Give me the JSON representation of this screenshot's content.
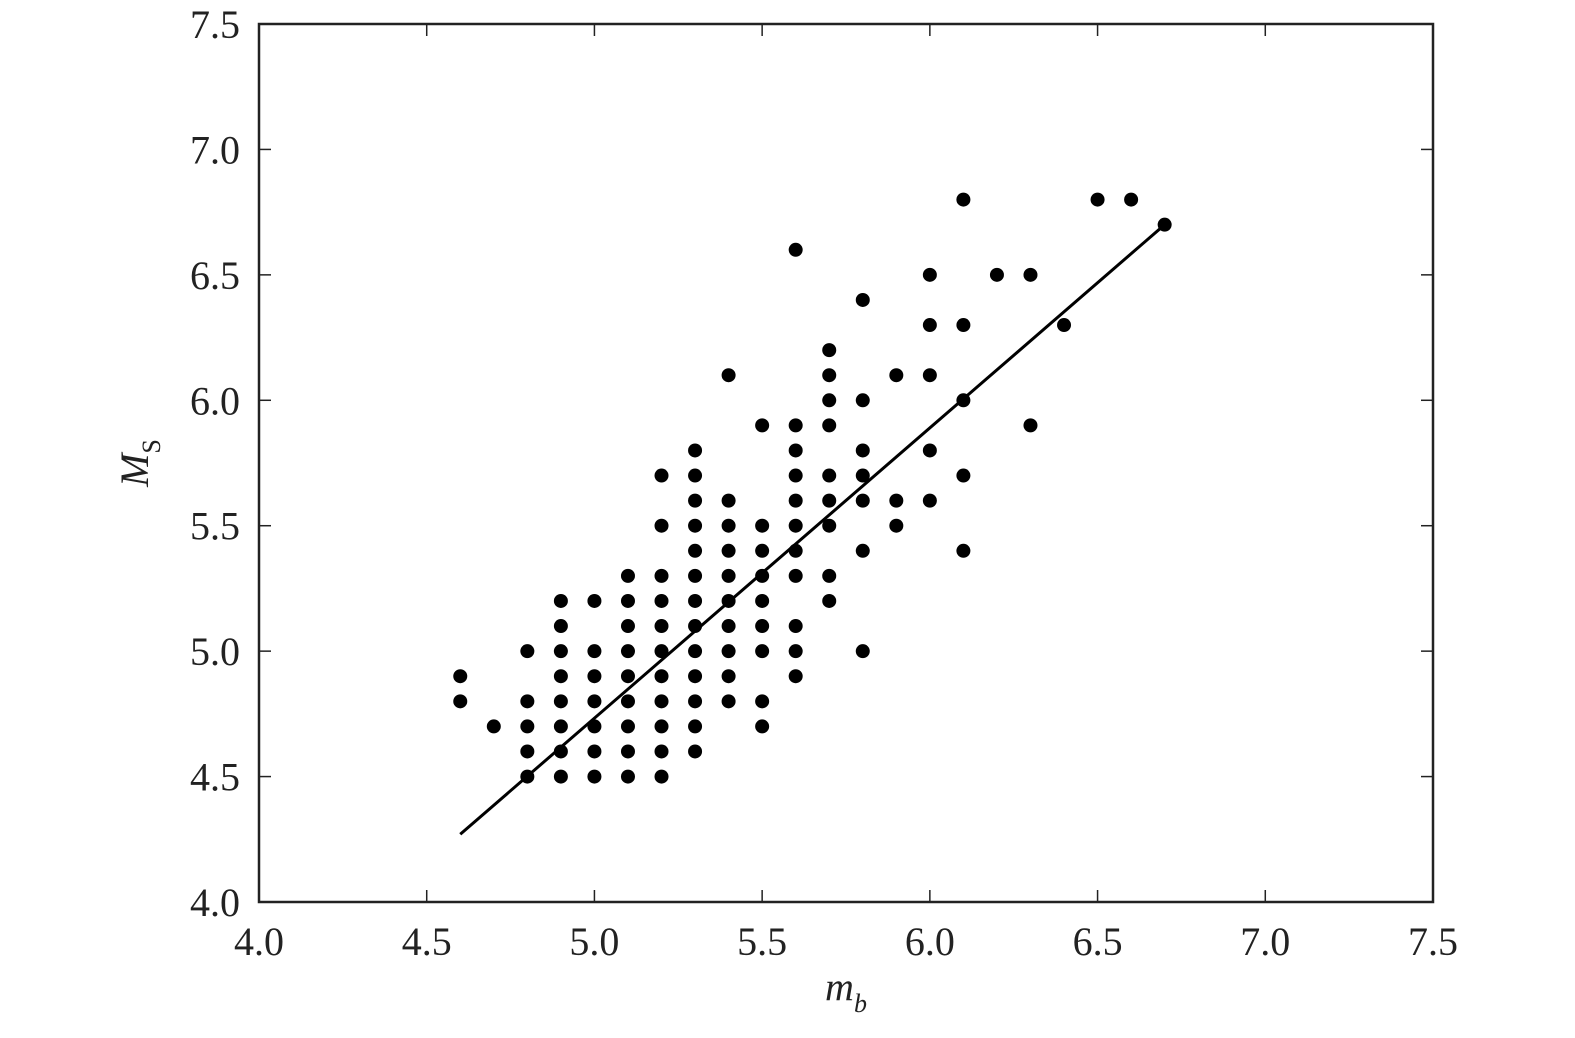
{
  "chart_data": {
    "type": "scatter",
    "xlabel": "m",
    "xlabel_sub": "b",
    "ylabel": "M",
    "ylabel_sub": "S",
    "xlim": [
      4.0,
      7.5
    ],
    "ylim": [
      4.0,
      7.5
    ],
    "xticks": [
      {
        "value": 4.0,
        "label": "4.0"
      },
      4.5,
      {
        "value": 5.0,
        "label": "5.0"
      },
      5.5,
      {
        "value": 6.0,
        "label": "6.0"
      },
      6.5,
      {
        "value": 7.0,
        "label": "7.0"
      },
      7.5
    ],
    "yticks": [
      {
        "value": 4.0,
        "label": "4.0"
      },
      4.5,
      {
        "value": 5.0,
        "label": "5.0"
      },
      5.5,
      {
        "value": 6.0,
        "label": "6.0"
      },
      6.5,
      {
        "value": 7.0,
        "label": "7.0"
      },
      7.5
    ],
    "color": "#000000",
    "points": {
      "x": [
        4.6,
        4.6,
        4.7,
        4.8,
        4.8,
        4.8,
        4.8,
        4.8,
        4.9,
        4.9,
        4.9,
        4.9,
        4.9,
        4.9,
        4.9,
        4.9,
        5.0,
        5.0,
        5.0,
        5.0,
        5.0,
        5.0,
        5.0,
        5.1,
        5.1,
        5.1,
        5.1,
        5.1,
        5.1,
        5.1,
        5.1,
        5.1,
        5.2,
        5.2,
        5.2,
        5.2,
        5.2,
        5.2,
        5.2,
        5.2,
        5.2,
        5.2,
        5.2,
        5.3,
        5.3,
        5.3,
        5.3,
        5.3,
        5.3,
        5.3,
        5.3,
        5.3,
        5.3,
        5.3,
        5.3,
        5.3,
        5.4,
        5.4,
        5.4,
        5.4,
        5.4,
        5.4,
        5.4,
        5.4,
        5.4,
        5.4,
        5.5,
        5.5,
        5.5,
        5.5,
        5.5,
        5.5,
        5.5,
        5.5,
        5.5,
        5.6,
        5.6,
        5.6,
        5.6,
        5.6,
        5.6,
        5.6,
        5.6,
        5.6,
        5.6,
        5.6,
        5.7,
        5.7,
        5.7,
        5.7,
        5.7,
        5.7,
        5.7,
        5.7,
        5.7,
        5.8,
        5.8,
        5.8,
        5.8,
        5.8,
        5.8,
        5.8,
        5.9,
        5.9,
        5.9,
        6.0,
        6.0,
        6.0,
        6.0,
        6.0,
        6.1,
        6.1,
        6.1,
        6.1,
        6.1,
        6.2,
        6.3,
        6.3,
        6.4,
        6.5,
        6.6,
        6.7
      ],
      "y": [
        4.9,
        4.8,
        4.7,
        5.0,
        4.8,
        4.7,
        4.6,
        4.5,
        5.2,
        5.1,
        5.0,
        4.9,
        4.8,
        4.7,
        4.6,
        4.5,
        5.2,
        5.0,
        4.9,
        4.8,
        4.7,
        4.6,
        4.5,
        5.3,
        5.2,
        5.1,
        5.0,
        4.9,
        4.8,
        4.7,
        4.6,
        4.5,
        5.7,
        5.5,
        5.3,
        5.2,
        5.1,
        5.0,
        4.9,
        4.8,
        4.7,
        4.6,
        4.5,
        5.8,
        5.7,
        5.6,
        5.5,
        5.4,
        5.3,
        5.2,
        5.1,
        5.0,
        4.9,
        4.8,
        4.7,
        4.6,
        6.1,
        5.6,
        5.5,
        5.4,
        5.3,
        5.2,
        5.1,
        5.0,
        4.9,
        4.8,
        5.9,
        5.5,
        5.4,
        5.3,
        5.2,
        5.1,
        5.0,
        4.8,
        4.7,
        6.6,
        5.9,
        5.8,
        5.7,
        5.6,
        5.5,
        5.4,
        5.3,
        5.1,
        5.0,
        4.9,
        6.2,
        6.1,
        6.0,
        5.9,
        5.7,
        5.6,
        5.5,
        5.3,
        5.2,
        6.4,
        6.0,
        5.8,
        5.7,
        5.6,
        5.4,
        5.0,
        6.1,
        5.6,
        5.5,
        6.5,
        6.3,
        6.1,
        5.8,
        5.6,
        6.8,
        6.3,
        6.0,
        5.7,
        5.4,
        6.5,
        6.5,
        5.9,
        6.3,
        6.8,
        6.8,
        6.7
      ]
    },
    "fit_line": {
      "x": [
        4.6,
        6.7
      ],
      "y": [
        4.27,
        6.7
      ]
    }
  }
}
